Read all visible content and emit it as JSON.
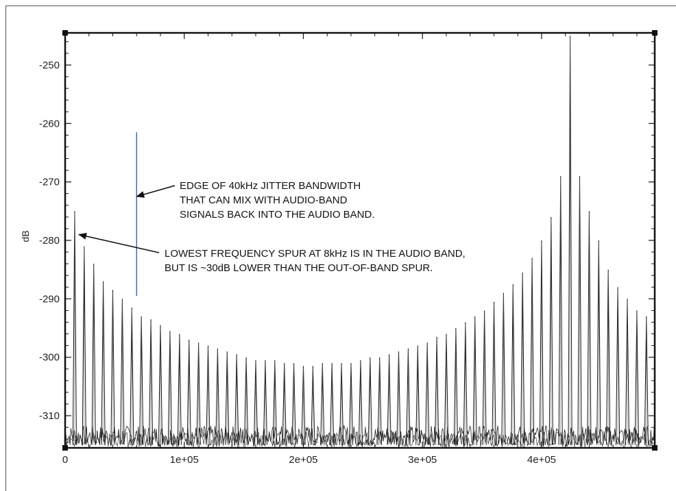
{
  "chart_data": {
    "type": "line",
    "title": "",
    "xlabel": "",
    "ylabel": "dB",
    "xlim": [
      0,
      495000
    ],
    "ylim": [
      -315.5,
      -244.5
    ],
    "x_ticks": [
      {
        "value": 0,
        "label": "0"
      },
      {
        "value": 100000,
        "label": "1e+05"
      },
      {
        "value": 200000,
        "label": "2e+05"
      },
      {
        "value": 300000,
        "label": "3e+05"
      },
      {
        "value": 400000,
        "label": "4e+05"
      }
    ],
    "y_ticks": [
      {
        "value": -250,
        "label": "-250"
      },
      {
        "value": -260,
        "label": "-260"
      },
      {
        "value": -270,
        "label": "-270"
      },
      {
        "value": -280,
        "label": "-280"
      },
      {
        "value": -290,
        "label": "-290"
      },
      {
        "value": -300,
        "label": "-300"
      },
      {
        "value": -310,
        "label": "-310"
      }
    ],
    "grid": false,
    "series_color": "#111111",
    "noise_floor_db": -313.5,
    "spurs": {
      "x": [
        8000,
        16000,
        24000,
        32000,
        40000,
        48000,
        56000,
        64000,
        72000,
        80000,
        88000,
        96000,
        104000,
        112000,
        120000,
        128000,
        136000,
        144000,
        152000,
        160000,
        168000,
        176000,
        184000,
        192000,
        200000,
        208000,
        216000,
        224000,
        232000,
        240000,
        248000,
        256000,
        264000,
        272000,
        280000,
        288000,
        296000,
        304000,
        312000,
        320000,
        328000,
        336000,
        344000,
        352000,
        360000,
        368000,
        376000,
        384000,
        392000,
        400000,
        408000,
        416000,
        424000,
        432000,
        440000,
        448000,
        456000,
        464000,
        472000,
        480000,
        488000
      ],
      "y": [
        -275,
        -281,
        -284,
        -287,
        -288.5,
        -290,
        -291.5,
        -293,
        -293.5,
        -294.5,
        -295.5,
        -296,
        -297,
        -297.5,
        -298,
        -298.5,
        -299,
        -299.5,
        -300,
        -300.5,
        -300.5,
        -300.5,
        -301,
        -301,
        -301.5,
        -301.5,
        -301,
        -301,
        -301,
        -301,
        -300.5,
        -300,
        -300,
        -299.5,
        -299,
        -298.5,
        -298,
        -297.5,
        -296.5,
        -296,
        -295,
        -294,
        -293,
        -292,
        -290.5,
        -289,
        -287.5,
        -285.5,
        -283,
        -280,
        -276,
        -269,
        -245,
        -269,
        -275,
        -280,
        -285,
        -288,
        -290,
        -292,
        -293
      ]
    },
    "annotations": [
      {
        "lines": [
          "EDGE OF 40kHz JITTER BANDWIDTH",
          "THAT CAN MIX WITH AUDIO-BAND",
          "SIGNALS BACK INTO THE AUDIO BAND."
        ],
        "arrow_to": [
          60000,
          -272.5
        ]
      },
      {
        "lines": [
          "LOWEST FREQUENCY SPUR AT 8kHz IS IN THE AUDIO BAND,",
          "BUT IS ~30dB LOWER THAN THE OUT-OF-BAND SPUR."
        ],
        "arrow_to": [
          11500,
          -279
        ]
      }
    ],
    "vertical_marker": {
      "x": 60000,
      "y_range": [
        -261.5,
        -289.5
      ],
      "color": "#3a6fc4"
    }
  }
}
